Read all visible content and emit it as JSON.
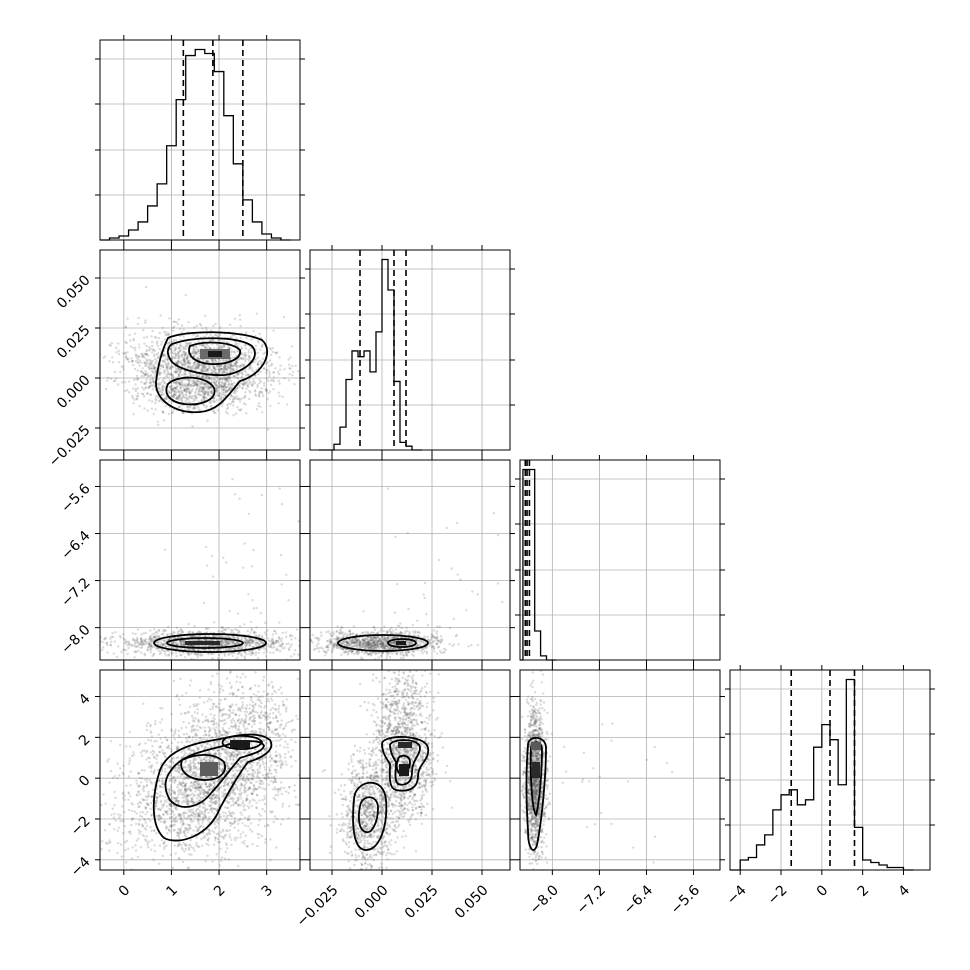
{
  "chart_data": {
    "type": "corner",
    "title": "",
    "grid": true,
    "n_params": 4,
    "params": [
      {
        "index": 0,
        "range": [
          -0.5,
          3.7
        ],
        "ticks": [
          0,
          1,
          2,
          3
        ],
        "tick_labels": [
          "0",
          "1",
          "2",
          "3"
        ],
        "quantiles": [
          1.25,
          1.87,
          2.5
        ],
        "hist": {
          "start": -0.3,
          "width": 0.2,
          "counts": [
            1,
            2,
            5,
            9,
            17,
            28,
            47,
            70,
            92,
            95,
            93,
            84,
            62,
            38,
            20,
            9,
            3,
            1
          ]
        }
      },
      {
        "index": 1,
        "range": [
          -0.036,
          0.064
        ],
        "ticks": [
          -0.025,
          0,
          0.025,
          0.05
        ],
        "tick_labels": [
          "−0.025",
          "0.000",
          "0.025",
          "0.050"
        ],
        "quantiles": [
          -0.011,
          0.006,
          0.012
        ],
        "hist": {
          "start": -0.024,
          "width": 0.003,
          "counts": [
            3,
            12,
            37,
            52,
            49,
            52,
            41,
            62,
            100,
            84,
            36,
            4,
            2
          ]
        }
      },
      {
        "index": 2,
        "range": [
          -8.55,
          -5.15
        ],
        "ticks": [
          -8,
          -7.2,
          -6.4,
          -5.6
        ],
        "tick_labels": [
          "−8.0",
          "−7.2",
          "−6.4",
          "−5.6"
        ],
        "quantiles": [
          -8.46,
          -8.43,
          -8.39
        ],
        "hist": {
          "start": -8.5,
          "width": 0.1,
          "counts": [
            92,
            92,
            14,
            2
          ]
        }
      },
      {
        "index": 3,
        "range": [
          -4.5,
          5.3
        ],
        "ticks": [
          -4,
          -2,
          0,
          2,
          4
        ],
        "tick_labels": [
          "−4",
          "−2",
          "0",
          "2",
          "4"
        ],
        "quantiles": [
          -1.5,
          0.4,
          1.6
        ],
        "hist": {
          "start": -4.0,
          "width": 0.4,
          "counts": [
            4,
            5,
            10,
            14,
            24,
            30,
            32,
            26,
            28,
            49,
            58,
            52,
            34,
            76,
            17,
            4,
            3,
            2,
            1,
            1
          ]
        }
      }
    ],
    "pairs": [
      {
        "x": 0,
        "y": 1,
        "correlation": "bimodal"
      },
      {
        "x": 0,
        "y": 2,
        "correlation": "none"
      },
      {
        "x": 1,
        "y": 2,
        "correlation": "none"
      },
      {
        "x": 0,
        "y": 3,
        "correlation": "positive"
      },
      {
        "x": 1,
        "y": 3,
        "correlation": "positive-bimodal"
      },
      {
        "x": 2,
        "y": 3,
        "correlation": "none"
      }
    ]
  }
}
